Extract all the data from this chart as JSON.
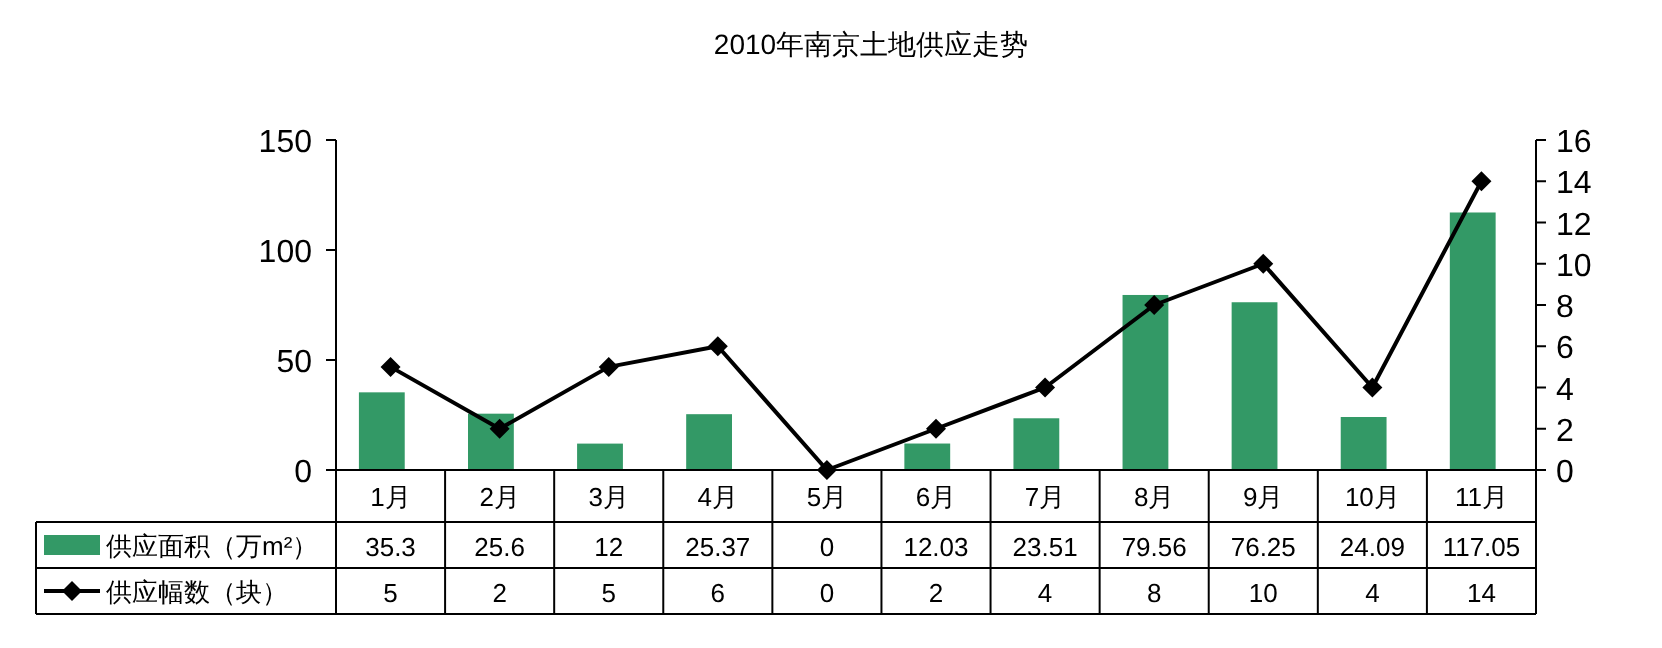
{
  "chart_data": {
    "type": "bar",
    "title": "2010年南京土地供应走势",
    "categories": [
      "1月",
      "2月",
      "3月",
      "4月",
      "5月",
      "6月",
      "7月",
      "8月",
      "9月",
      "10月",
      "11月"
    ],
    "series": [
      {
        "name": "供应面积（万m²）",
        "color": "#339966",
        "values": [
          35.3,
          25.6,
          12,
          25.37,
          0,
          12.03,
          23.51,
          79.56,
          76.25,
          24.09,
          117.05
        ]
      },
      {
        "name": "供应幅数（块）",
        "type": "line",
        "axis": "y2",
        "color": "#000000",
        "marker": "diamond",
        "values": [
          5,
          2,
          5,
          6,
          0,
          2,
          4,
          8,
          10,
          4,
          14
        ]
      }
    ],
    "ylim": [
      0,
      150
    ],
    "yticks": [
      0,
      50,
      100,
      150
    ],
    "y2lim": [
      0,
      16
    ],
    "y2ticks": [
      0,
      2,
      4,
      6,
      8,
      10,
      12,
      14,
      16
    ],
    "data_labels": true,
    "legend": "bottom",
    "grid": false
  }
}
